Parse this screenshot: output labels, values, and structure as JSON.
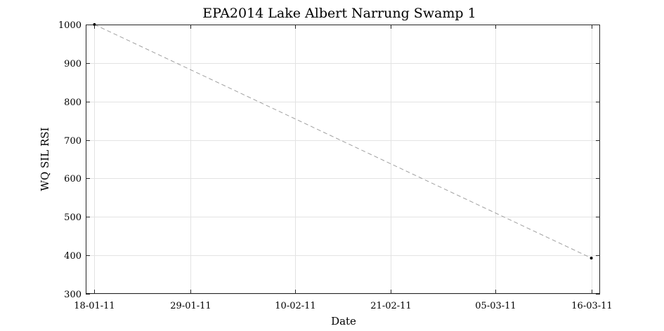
{
  "chart_data": {
    "type": "line",
    "title": "EPA2014 Lake Albert Narrung Swamp 1",
    "xlabel": "Date",
    "ylabel": "WQ SIL RSI",
    "x_ticks": [
      "18-01-11",
      "29-01-11",
      "10-02-11",
      "21-02-11",
      "05-03-11",
      "16-03-11"
    ],
    "y_ticks": [
      "300",
      "400",
      "500",
      "600",
      "700",
      "800",
      "900",
      "1000"
    ],
    "ylim": [
      300,
      1000
    ],
    "xlim": [
      "2011-01-17",
      "2011-03-17"
    ],
    "grid": true,
    "series": [
      {
        "x": [
          "2011-01-18",
          "2011-03-16"
        ],
        "y": [
          1000,
          393
        ],
        "line_style": "dashed",
        "line_color": "#a0a0a0",
        "marker_color": "#000000"
      }
    ]
  }
}
